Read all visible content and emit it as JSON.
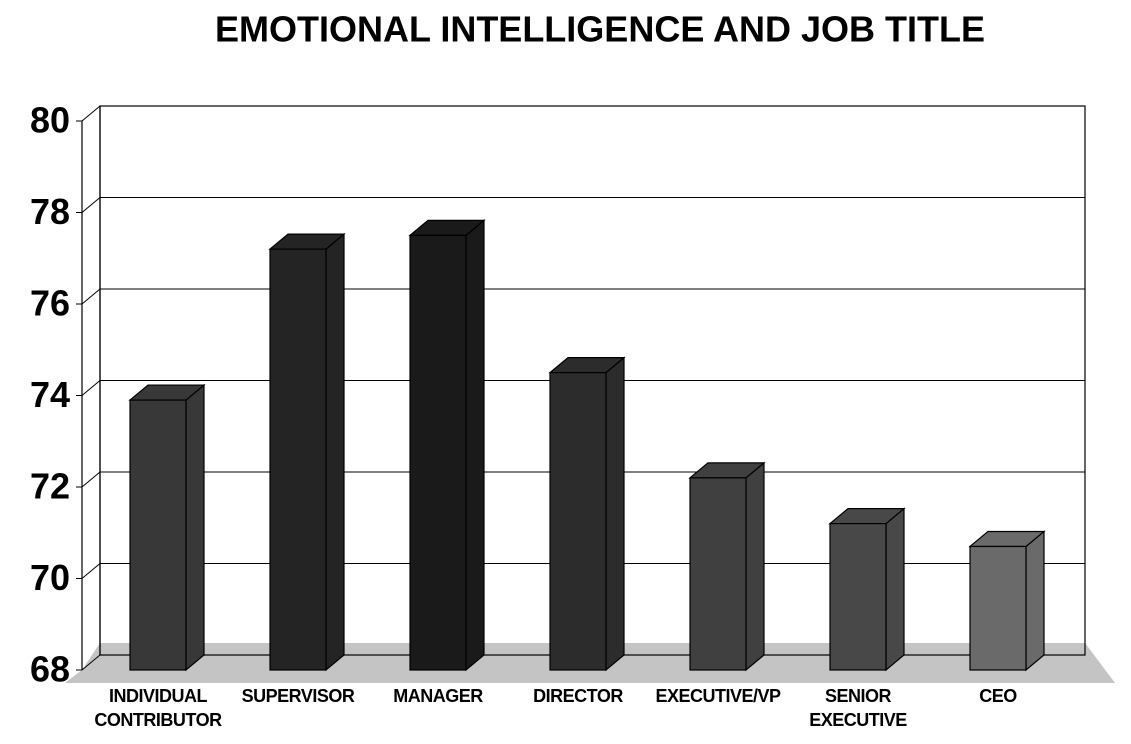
{
  "chart_data": {
    "type": "bar3d",
    "title": "EMOTIONAL INTELLIGENCE AND JOB TITLE",
    "categories": [
      "INDIVIDUAL CONTRIBUTOR",
      "SUPERVISOR",
      "MANAGER",
      "DIRECTOR",
      "EXECUTIVE/VP",
      "SENIOR EXECUTIVE",
      "CEO"
    ],
    "values": [
      73.9,
      77.2,
      77.5,
      74.5,
      72.2,
      71.2,
      70.7
    ],
    "colors": [
      "#383838",
      "#242424",
      "#1a1a1a",
      "#2c2c2c",
      "#404040",
      "#484848",
      "#6a6a6a"
    ],
    "ylim": [
      68,
      80
    ],
    "yticks": [
      68,
      70,
      72,
      74,
      76,
      78,
      80
    ],
    "grid": true
  }
}
